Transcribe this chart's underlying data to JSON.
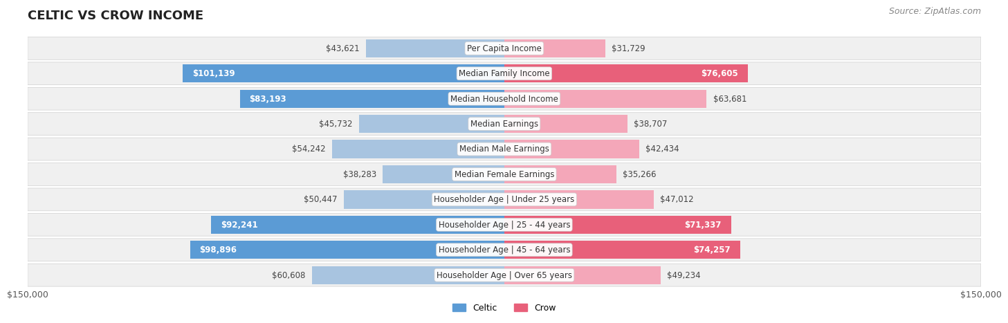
{
  "title": "CELTIC VS CROW INCOME",
  "source": "Source: ZipAtlas.com",
  "categories": [
    "Per Capita Income",
    "Median Family Income",
    "Median Household Income",
    "Median Earnings",
    "Median Male Earnings",
    "Median Female Earnings",
    "Householder Age | Under 25 years",
    "Householder Age | 25 - 44 years",
    "Householder Age | 45 - 64 years",
    "Householder Age | Over 65 years"
  ],
  "celtic_values": [
    43621,
    101139,
    83193,
    45732,
    54242,
    38283,
    50447,
    92241,
    98896,
    60608
  ],
  "crow_values": [
    31729,
    76605,
    63681,
    38707,
    42434,
    35266,
    47012,
    71337,
    74257,
    49234
  ],
  "max_value": 150000,
  "celtic_color_normal": "#a8c4e0",
  "celtic_color_dark": "#5b9bd5",
  "crow_color_normal": "#f4a7b9",
  "crow_color_dark": "#e8607a",
  "label_color_dark": "#ffffff",
  "label_color_normal": "#555555",
  "row_bg_color": "#f0f0f0",
  "row_border_color": "#d0d0d0",
  "background_color": "#ffffff",
  "title_fontsize": 13,
  "source_fontsize": 9,
  "bar_label_fontsize": 8.5,
  "category_fontsize": 8.5,
  "axis_label_fontsize": 9,
  "legend_fontsize": 9
}
